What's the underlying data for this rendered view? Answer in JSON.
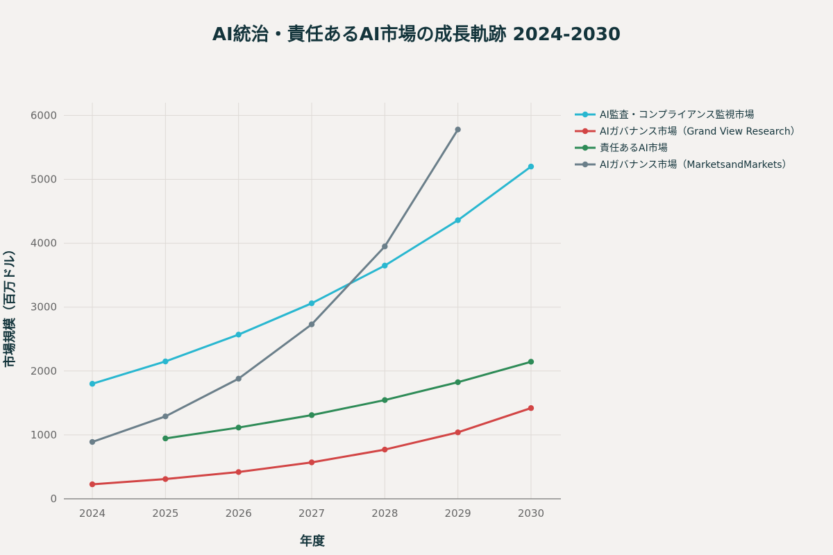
{
  "chart_data": {
    "type": "line",
    "title": "AI統治・責任あるAI市場の成長軌跡 2024-2030",
    "xlabel": "年度",
    "ylabel": "市場規模（百万ドル）",
    "categories": [
      "2024",
      "2025",
      "2026",
      "2027",
      "2028",
      "2029",
      "2030"
    ],
    "y_ticks": [
      "0",
      "1000",
      "2000",
      "3000",
      "4000",
      "5000",
      "6000"
    ],
    "ylim": [
      0,
      6200
    ],
    "grid": true,
    "legend_position": "top-right, outside plot",
    "series": [
      {
        "name": "AI監査・コンプライアンス監視市場",
        "color": "#29b7d0",
        "values": [
          1800,
          2150,
          2570,
          3060,
          3650,
          4360,
          5200
        ]
      },
      {
        "name": "AIガバナンス市場（Grand View Research）",
        "color": "#d24545",
        "values": [
          227,
          309,
          419,
          570,
          770,
          1040,
          1420
        ]
      },
      {
        "name": "責任あるAI市場",
        "color": "#2e8b57",
        "values": [
          null,
          945,
          1115,
          1310,
          1545,
          1825,
          2145
        ]
      },
      {
        "name": "AIガバナンス市場（MarketsandMarkets）",
        "color": "#6b7f8a",
        "values": [
          890,
          1290,
          1880,
          2730,
          3950,
          5780,
          null
        ]
      }
    ]
  }
}
